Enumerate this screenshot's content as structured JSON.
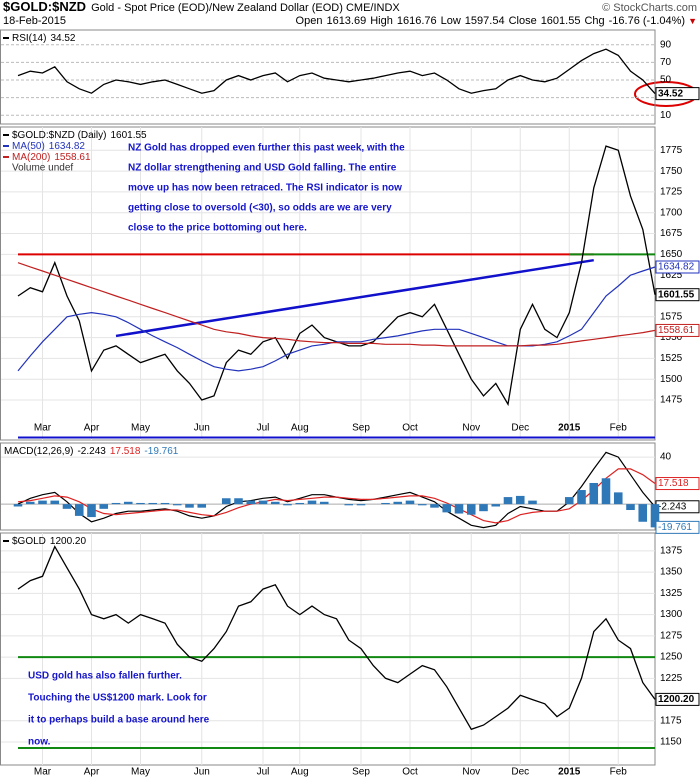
{
  "header": {
    "symbol": "$GOLD:$NZD",
    "subtitle": "Gold - Spot Price (EOD)/New Zealand Dollar (EOD) CME/INDX",
    "source": "© StockCharts.com",
    "date": "18-Feb-2015",
    "quote": [
      {
        "label": "Open",
        "value": 1613.69
      },
      {
        "label": "High",
        "value": 1616.76
      },
      {
        "label": "Low",
        "value": 1597.54
      },
      {
        "label": "Close",
        "value": 1601.55
      },
      {
        "label": "Chg",
        "value": "-16.76 (-1.04%)"
      }
    ]
  },
  "chart_data": [
    {
      "type": "line",
      "ylim": [
        0,
        100
      ],
      "yticks": [
        10,
        30,
        50,
        70,
        90
      ],
      "series": [
        {
          "name": "RSI(14)",
          "color": "#000000",
          "values": [
            55,
            60,
            58,
            65,
            48,
            40,
            35,
            45,
            50,
            48,
            45,
            48,
            50,
            45,
            40,
            35,
            38,
            50,
            55,
            50,
            55,
            58,
            48,
            55,
            58,
            52,
            50,
            48,
            50,
            52,
            55,
            58,
            60,
            55,
            58,
            50,
            40,
            35,
            38,
            40,
            50,
            55,
            50,
            48,
            52,
            62,
            72,
            80,
            85,
            78,
            60,
            50,
            34.52
          ]
        }
      ]
    },
    {
      "type": "line",
      "ylim": [
        1427,
        1803
      ],
      "yticks": [
        1475,
        1500,
        1525,
        1550,
        1575,
        1625,
        1650,
        1675,
        1700,
        1725,
        1750,
        1775
      ],
      "categories": [
        null,
        null,
        "Mar",
        null,
        null,
        null,
        "Apr",
        null,
        null,
        null,
        "May",
        null,
        null,
        null,
        null,
        "Jun",
        null,
        null,
        null,
        null,
        "Jul",
        null,
        null,
        "Aug",
        null,
        null,
        null,
        null,
        "Sep",
        null,
        null,
        null,
        "Oct",
        null,
        null,
        null,
        null,
        "Nov",
        null,
        null,
        null,
        "Dec",
        null,
        null,
        null,
        "2015",
        null,
        null,
        null,
        "Feb",
        null,
        null,
        null
      ],
      "series": [
        {
          "name": "$GOLD:$NZD (Daily)",
          "color": "#000000",
          "values": [
            1600,
            1610,
            1605,
            1640,
            1600,
            1570,
            1510,
            1535,
            1540,
            1530,
            1520,
            1525,
            1530,
            1510,
            1495,
            1475,
            1480,
            1520,
            1535,
            1530,
            1545,
            1550,
            1525,
            1555,
            1565,
            1550,
            1545,
            1540,
            1540,
            1545,
            1560,
            1575,
            1580,
            1575,
            1590,
            1560,
            1530,
            1500,
            1480,
            1495,
            1470,
            1560,
            1590,
            1560,
            1550,
            1580,
            1640,
            1730,
            1780,
            1775,
            1720,
            1680,
            1601.55
          ]
        },
        {
          "name": "MA(50)",
          "color": "#2233bb",
          "values": [
            1510,
            1528,
            1545,
            1560,
            1575,
            1578,
            1580,
            1578,
            1575,
            1568,
            1560,
            1552,
            1545,
            1538,
            1530,
            1522,
            1515,
            1512,
            1510,
            1512,
            1515,
            1522,
            1530,
            1535,
            1540,
            1542,
            1545,
            1545,
            1545,
            1548,
            1550,
            1552,
            1555,
            1558,
            1560,
            1560,
            1560,
            1555,
            1550,
            1545,
            1540,
            1540,
            1540,
            1542,
            1545,
            1552,
            1560,
            1580,
            1600,
            1612,
            1625,
            1630,
            1634.82
          ]
        },
        {
          "name": "MA(200)",
          "color": "#c02020",
          "values": [
            1640,
            1635,
            1630,
            1625,
            1620,
            1615,
            1610,
            1605,
            1600,
            1595,
            1590,
            1585,
            1580,
            1575,
            1570,
            1565,
            1560,
            1557,
            1555,
            1552,
            1550,
            1549,
            1548,
            1546,
            1545,
            1544,
            1544,
            1543,
            1543,
            1543,
            1542,
            1542,
            1542,
            1541,
            1541,
            1540,
            1540,
            1540,
            1540,
            1540,
            1540,
            1540,
            1541,
            1541,
            1542,
            1544,
            1546,
            1548,
            1550,
            1552,
            1554,
            1556,
            1558.61
          ]
        }
      ],
      "note": "Volume undef",
      "hlines": [
        {
          "value": 1650,
          "color": "#dd0000",
          "from": 0,
          "to": 47
        },
        {
          "value": 1650,
          "color": "#118811",
          "from": 45,
          "to": 52
        },
        {
          "value": 1430,
          "color": "#1111cc",
          "from": 0,
          "to": 52
        }
      ],
      "trendlines": [
        {
          "from": [
            8,
            1552
          ],
          "to": [
            47,
            1643
          ],
          "color": "#1111cc"
        }
      ],
      "annotation": [
        "NZ Gold has dropped even further this past week, with the",
        "NZ dollar strengthening and USD Gold falling. The entire",
        "move up has now been retraced. The RSI indicator is now",
        "getting close to oversold (<30), so odds are we are very",
        "close to the price bottoming out here."
      ]
    },
    {
      "type": "line",
      "label": "MACD(12,26,9)",
      "ylim": [
        -22,
        52
      ],
      "yticks": [
        40
      ],
      "series": [
        {
          "color": "#000000",
          "values": [
            0,
            5,
            8,
            10,
            2,
            -8,
            -15,
            -12,
            -8,
            -6,
            -6,
            -5,
            -4,
            -6,
            -10,
            -12,
            -10,
            -2,
            2,
            3,
            5,
            6,
            2,
            5,
            8,
            8,
            6,
            4,
            3,
            4,
            6,
            8,
            10,
            6,
            2,
            -6,
            -12,
            -18,
            -20,
            -18,
            -8,
            -2,
            -4,
            -6,
            -6,
            2,
            15,
            30,
            44,
            40,
            25,
            10,
            -2.243
          ]
        },
        {
          "color": "#dd2222",
          "values": [
            2,
            3,
            5,
            7,
            6,
            2,
            -4,
            -8,
            -9,
            -8,
            -7,
            -6,
            -5,
            -5,
            -7,
            -9,
            -10,
            -7,
            -3,
            0,
            2,
            4,
            3,
            4,
            5,
            6,
            6,
            5,
            4,
            4,
            5,
            6,
            7,
            7,
            5,
            1,
            -4,
            -9,
            -14,
            -16,
            -14,
            -9,
            -7,
            -6,
            -6,
            -4,
            3,
            12,
            22,
            30,
            30,
            25,
            17.518
          ]
        },
        {
          "color": "#2f78b8",
          "kind": "bar",
          "values": [
            -2,
            2,
            3,
            3,
            -4,
            -10,
            -11,
            -4,
            1,
            2,
            1,
            1,
            1,
            -1,
            -3,
            -3,
            0,
            5,
            5,
            3,
            3,
            2,
            -1,
            1,
            3,
            2,
            0,
            -1,
            -1,
            0,
            1,
            2,
            3,
            -1,
            -3,
            -7,
            -8,
            -9,
            -6,
            -2,
            6,
            7,
            3,
            0,
            0,
            6,
            12,
            18,
            22,
            10,
            -5,
            -15,
            -19.761
          ]
        }
      ]
    },
    {
      "type": "line",
      "ylim": [
        1123,
        1396
      ],
      "yticks": [
        1150,
        1175,
        1225,
        1250,
        1275,
        1300,
        1325,
        1350,
        1375
      ],
      "categories": [
        null,
        null,
        "Mar",
        null,
        null,
        null,
        "Apr",
        null,
        null,
        null,
        "May",
        null,
        null,
        null,
        null,
        "Jun",
        null,
        null,
        null,
        null,
        "Jul",
        null,
        null,
        "Aug",
        null,
        null,
        null,
        null,
        "Sep",
        null,
        null,
        null,
        "Oct",
        null,
        null,
        null,
        null,
        "Nov",
        null,
        null,
        null,
        "Dec",
        null,
        null,
        null,
        "2015",
        null,
        null,
        null,
        "Feb",
        null,
        null,
        null
      ],
      "series": [
        {
          "name": "$GOLD",
          "color": "#000000",
          "last_label": "1200.20",
          "values": [
            1330,
            1340,
            1345,
            1380,
            1355,
            1330,
            1300,
            1295,
            1300,
            1290,
            1300,
            1295,
            1290,
            1265,
            1250,
            1245,
            1260,
            1280,
            1310,
            1315,
            1330,
            1335,
            1310,
            1300,
            1310,
            1300,
            1295,
            1270,
            1260,
            1240,
            1225,
            1220,
            1230,
            1240,
            1235,
            1215,
            1190,
            1165,
            1170,
            1180,
            1190,
            1205,
            1200,
            1195,
            1180,
            1190,
            1225,
            1280,
            1295,
            1270,
            1260,
            1220,
            1200.2
          ]
        }
      ],
      "hlines": [
        {
          "value": 1250,
          "color": "#118811",
          "from": 0,
          "to": 52
        },
        {
          "value": 1143,
          "color": "#118811",
          "from": 0,
          "to": 52
        }
      ],
      "annotation": [
        "USD gold has also fallen further.",
        "Touching the US$1200 mark. Look for",
        "it to perhaps build a base around here",
        "now."
      ]
    }
  ]
}
